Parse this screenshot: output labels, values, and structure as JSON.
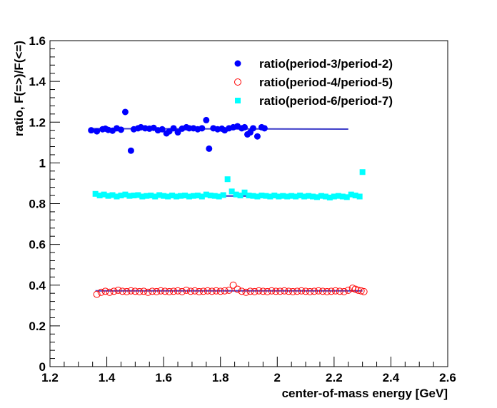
{
  "chart_data": {
    "type": "scatter",
    "xlabel": "center-of-mass energy [GeV]",
    "ylabel": "ratio, F(=>)/F(<=)",
    "xlim": [
      1.2,
      2.6
    ],
    "ylim": [
      0,
      1.6
    ],
    "x_ticks": [
      "1.2",
      "1.4",
      "1.6",
      "1.8",
      "2",
      "2.2",
      "2.4",
      "2.6"
    ],
    "y_ticks": [
      "0",
      "0.2",
      "0.4",
      "0.6",
      "0.8",
      "1",
      "1.2",
      "1.4",
      "1.6"
    ],
    "legend_position": "top-right",
    "series": [
      {
        "name": "ratio(period-3/period-2)",
        "marker": "filled-circle",
        "color": "#0000ff",
        "fit": {
          "x": [
            1.35,
            2.25
          ],
          "y": [
            1.168,
            1.166
          ],
          "color": "#3c3cc8"
        },
        "x": [
          1.345,
          1.365,
          1.385,
          1.395,
          1.405,
          1.42,
          1.435,
          1.45,
          1.465,
          1.485,
          1.495,
          1.51,
          1.52,
          1.535,
          1.55,
          1.565,
          1.58,
          1.595,
          1.61,
          1.62,
          1.635,
          1.65,
          1.665,
          1.68,
          1.69,
          1.705,
          1.72,
          1.735,
          1.75,
          1.76,
          1.775,
          1.79,
          1.805,
          1.815,
          1.83,
          1.845,
          1.86,
          1.875,
          1.885,
          1.895,
          1.905,
          1.915,
          1.93,
          1.945,
          1.955
        ],
        "y": [
          1.16,
          1.155,
          1.165,
          1.168,
          1.162,
          1.158,
          1.17,
          1.163,
          1.25,
          1.06,
          1.165,
          1.17,
          1.175,
          1.17,
          1.168,
          1.172,
          1.16,
          1.165,
          1.145,
          1.155,
          1.17,
          1.15,
          1.168,
          1.175,
          1.17,
          1.17,
          1.165,
          1.17,
          1.21,
          1.07,
          1.17,
          1.165,
          1.168,
          1.16,
          1.17,
          1.175,
          1.18,
          1.17,
          1.175,
          1.14,
          1.15,
          1.17,
          1.13,
          1.175,
          1.17
        ]
      },
      {
        "name": "ratio(period-4/period-5)",
        "marker": "open-circle",
        "color": "#ff0000",
        "fit": {
          "x": [
            1.36,
            2.3
          ],
          "y": [
            0.372,
            0.372
          ],
          "color": "#3c3cc8"
        },
        "x": [
          1.365,
          1.38,
          1.395,
          1.41,
          1.425,
          1.44,
          1.455,
          1.47,
          1.485,
          1.5,
          1.515,
          1.53,
          1.545,
          1.56,
          1.575,
          1.59,
          1.605,
          1.62,
          1.635,
          1.65,
          1.665,
          1.68,
          1.695,
          1.71,
          1.725,
          1.74,
          1.755,
          1.77,
          1.785,
          1.8,
          1.815,
          1.83,
          1.845,
          1.86,
          1.875,
          1.89,
          1.905,
          1.92,
          1.935,
          1.95,
          1.965,
          1.98,
          1.995,
          2.01,
          2.025,
          2.04,
          2.055,
          2.07,
          2.085,
          2.1,
          2.115,
          2.13,
          2.145,
          2.16,
          2.175,
          2.19,
          2.205,
          2.22,
          2.235,
          2.25,
          2.265,
          2.275,
          2.285,
          2.295,
          2.305
        ],
        "y": [
          0.355,
          0.365,
          0.37,
          0.365,
          0.37,
          0.375,
          0.37,
          0.368,
          0.372,
          0.37,
          0.368,
          0.37,
          0.365,
          0.37,
          0.368,
          0.372,
          0.37,
          0.368,
          0.37,
          0.372,
          0.368,
          0.375,
          0.37,
          0.372,
          0.368,
          0.37,
          0.372,
          0.37,
          0.372,
          0.37,
          0.372,
          0.375,
          0.4,
          0.38,
          0.37,
          0.365,
          0.37,
          0.368,
          0.372,
          0.37,
          0.368,
          0.372,
          0.37,
          0.37,
          0.372,
          0.37,
          0.368,
          0.37,
          0.372,
          0.37,
          0.368,
          0.37,
          0.372,
          0.37,
          0.368,
          0.37,
          0.372,
          0.37,
          0.368,
          0.375,
          0.385,
          0.38,
          0.375,
          0.372,
          0.368
        ]
      },
      {
        "name": "ratio(period-6/period-7)",
        "marker": "filled-square",
        "color": "#00ffff",
        "fit": {
          "x": [
            1.355,
            2.29
          ],
          "y": [
            0.84,
            0.835
          ],
          "color": "#3c3cc8"
        },
        "x": [
          1.36,
          1.375,
          1.39,
          1.405,
          1.42,
          1.435,
          1.45,
          1.465,
          1.48,
          1.495,
          1.51,
          1.525,
          1.54,
          1.555,
          1.57,
          1.585,
          1.6,
          1.615,
          1.63,
          1.645,
          1.66,
          1.675,
          1.69,
          1.705,
          1.72,
          1.735,
          1.75,
          1.765,
          1.78,
          1.795,
          1.81,
          1.825,
          1.84,
          1.855,
          1.87,
          1.885,
          1.9,
          1.915,
          1.93,
          1.945,
          1.96,
          1.975,
          1.99,
          2.005,
          2.02,
          2.035,
          2.05,
          2.065,
          2.08,
          2.095,
          2.11,
          2.125,
          2.14,
          2.155,
          2.17,
          2.185,
          2.2,
          2.215,
          2.23,
          2.245,
          2.26,
          2.275,
          2.29,
          2.3
        ],
        "y": [
          0.848,
          0.84,
          0.845,
          0.838,
          0.842,
          0.835,
          0.84,
          0.845,
          0.838,
          0.84,
          0.842,
          0.835,
          0.838,
          0.84,
          0.835,
          0.842,
          0.838,
          0.835,
          0.84,
          0.835,
          0.838,
          0.84,
          0.835,
          0.838,
          0.84,
          0.835,
          0.845,
          0.84,
          0.838,
          0.835,
          0.842,
          0.92,
          0.86,
          0.845,
          0.84,
          0.855,
          0.84,
          0.838,
          0.835,
          0.84,
          0.838,
          0.835,
          0.84,
          0.835,
          0.838,
          0.835,
          0.838,
          0.835,
          0.84,
          0.835,
          0.838,
          0.835,
          0.832,
          0.838,
          0.835,
          0.83,
          0.835,
          0.838,
          0.835,
          0.832,
          0.845,
          0.84,
          0.835,
          0.955
        ]
      }
    ]
  }
}
